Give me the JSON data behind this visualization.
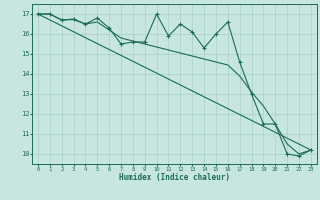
{
  "title": "",
  "xlabel": "Humidex (Indice chaleur)",
  "bg_color": "#c8e6e0",
  "grid_color": "#a8cfc8",
  "line_color": "#1a6b5a",
  "xlim": [
    -0.5,
    23.5
  ],
  "ylim": [
    9.5,
    17.5
  ],
  "yticks": [
    10,
    11,
    12,
    13,
    14,
    15,
    16,
    17
  ],
  "xticks": [
    0,
    1,
    2,
    3,
    4,
    5,
    6,
    7,
    8,
    9,
    10,
    11,
    12,
    13,
    14,
    15,
    16,
    17,
    18,
    19,
    20,
    21,
    22,
    23
  ],
  "series1_x": [
    0,
    1,
    2,
    3,
    4,
    5,
    6,
    7,
    8,
    9,
    10,
    11,
    12,
    13,
    14,
    15,
    16,
    17,
    18,
    19,
    20,
    21,
    22,
    23
  ],
  "series1_y": [
    17.0,
    17.0,
    16.7,
    16.75,
    16.5,
    16.8,
    16.3,
    15.5,
    15.6,
    15.6,
    17.0,
    15.9,
    16.5,
    16.1,
    15.3,
    16.0,
    16.6,
    14.6,
    13.0,
    11.5,
    11.5,
    10.0,
    9.9,
    10.2
  ],
  "series2_x": [
    0,
    23
  ],
  "series2_y": [
    17.0,
    10.2
  ],
  "series3_x": [
    0,
    1,
    2,
    3,
    4,
    5,
    6,
    7,
    8,
    9,
    10,
    11,
    12,
    13,
    14,
    15,
    16,
    17,
    18,
    19,
    20,
    21,
    22,
    23
  ],
  "series3_y": [
    17.0,
    17.0,
    16.7,
    16.72,
    16.5,
    16.6,
    16.2,
    15.8,
    15.65,
    15.5,
    15.35,
    15.2,
    15.05,
    14.9,
    14.75,
    14.6,
    14.45,
    13.9,
    13.1,
    12.4,
    11.5,
    10.5,
    10.0,
    10.2
  ]
}
